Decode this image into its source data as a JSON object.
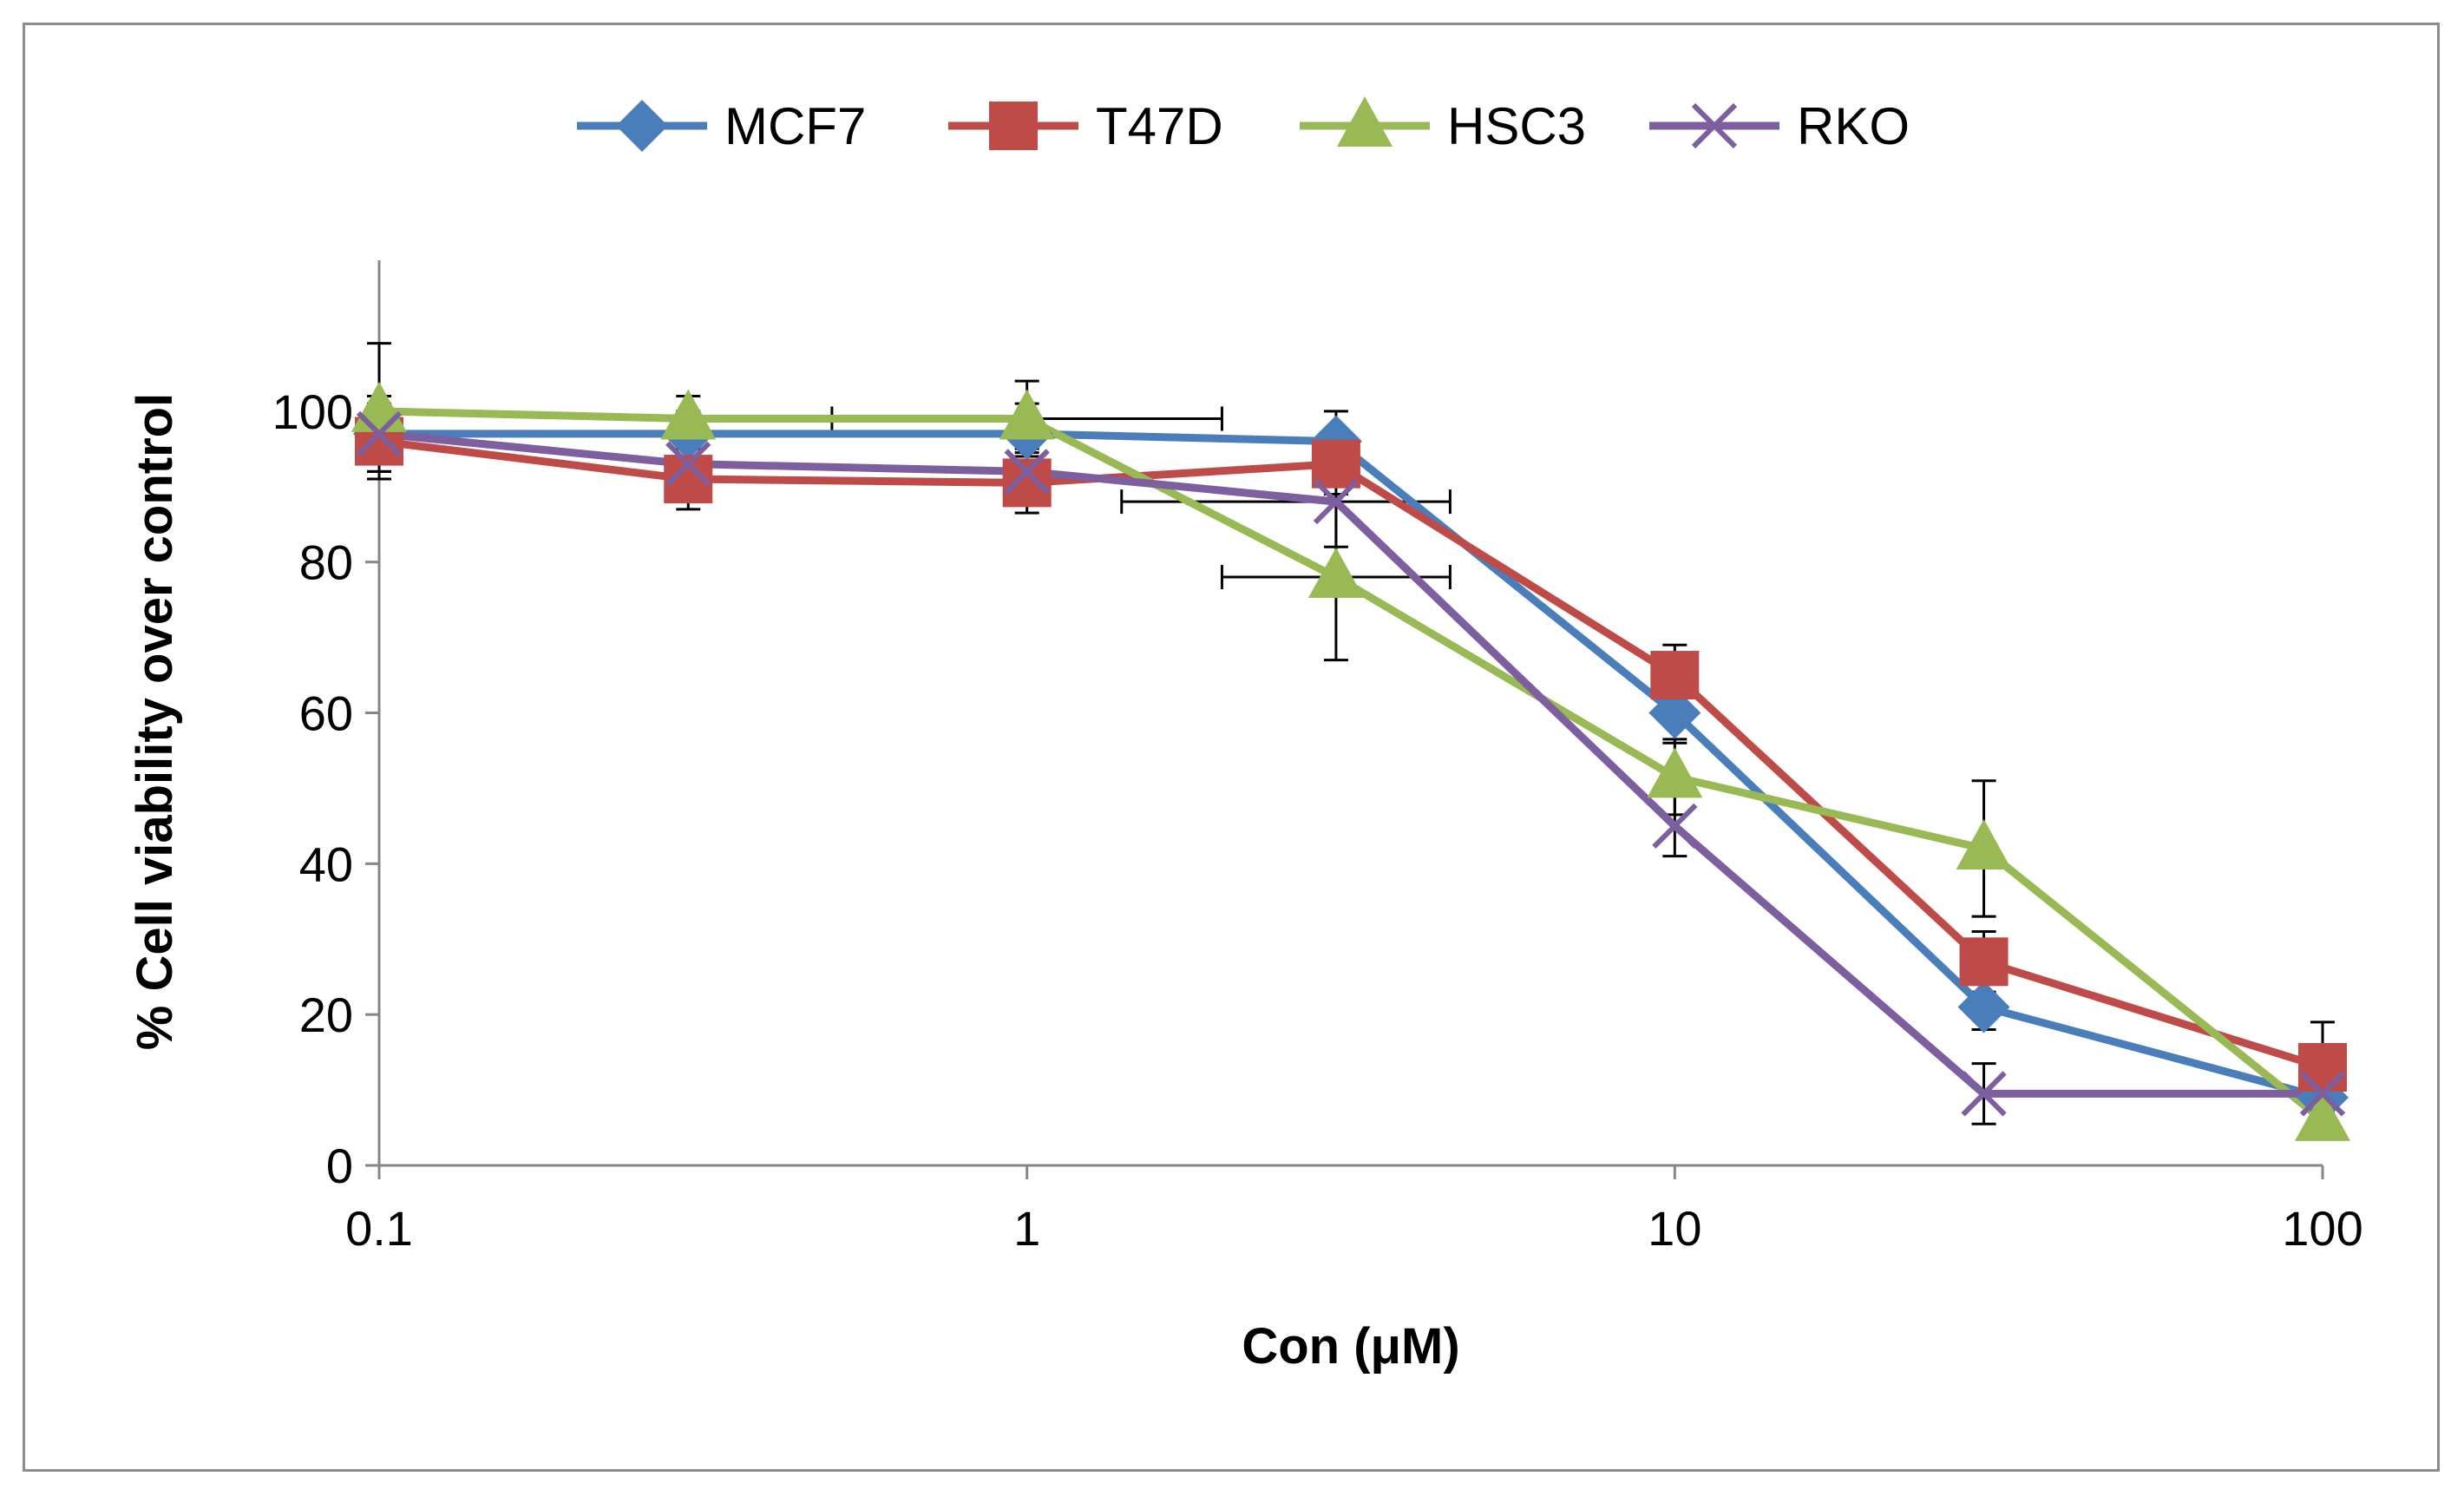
{
  "chart_data": {
    "type": "line",
    "xscale": "log",
    "xlim": [
      0.1,
      100
    ],
    "ylim": [
      0,
      120
    ],
    "grid": false,
    "legend_position": "top",
    "xlabel": "Con (μM)",
    "ylabel": "% Cell viability over control",
    "xticks": [
      {
        "value": 0.1,
        "label": "0.1"
      },
      {
        "value": 1,
        "label": "1"
      },
      {
        "value": 10,
        "label": "10"
      },
      {
        "value": 100,
        "label": "100"
      }
    ],
    "yticks": [
      {
        "value": 0,
        "label": "0"
      },
      {
        "value": 20,
        "label": "20"
      },
      {
        "value": 40,
        "label": "40"
      },
      {
        "value": 60,
        "label": "60"
      },
      {
        "value": 80,
        "label": "80"
      },
      {
        "value": 100,
        "label": "100"
      }
    ],
    "series": [
      {
        "name": "MCF7",
        "color": "#4a7ebb",
        "marker": "diamond",
        "points": [
          {
            "x": 0.1,
            "y": 97,
            "yerr": 5
          },
          {
            "x": 0.3,
            "y": 97,
            "yerr": 3
          },
          {
            "x": 1,
            "y": 97,
            "yerr": 4
          },
          {
            "x": 3,
            "y": 96,
            "yerr": 4
          },
          {
            "x": 10,
            "y": 60,
            "yerr": 4
          },
          {
            "x": 30,
            "y": 21,
            "yerr": 3
          },
          {
            "x": 100,
            "y": 9,
            "yerr": 2
          }
        ]
      },
      {
        "name": "T47D",
        "color": "#be4b48",
        "marker": "square",
        "points": [
          {
            "x": 0.1,
            "y": 96,
            "yerr": 4
          },
          {
            "x": 0.3,
            "y": 91,
            "yerr": 4
          },
          {
            "x": 1,
            "y": 90.5,
            "yerr": 4
          },
          {
            "x": 3,
            "y": 93,
            "yerr": 3
          },
          {
            "x": 10,
            "y": 65,
            "yerr": 4
          },
          {
            "x": 30,
            "y": 27,
            "yerr": 4
          },
          {
            "x": 100,
            "y": 13,
            "yerr": 6
          }
        ]
      },
      {
        "name": "HSC3",
        "color": "#98b954",
        "marker": "triangle",
        "points": [
          {
            "x": 0.1,
            "y": 100,
            "yerr": 9
          },
          {
            "x": 0.3,
            "y": 99,
            "yerr": 3
          },
          {
            "x": 1,
            "y": 99,
            "yerr": 5,
            "xerr": [
              0.5,
              2
            ]
          },
          {
            "x": 3,
            "y": 78,
            "yerr": 11,
            "xerr": [
              2,
              4.5
            ]
          },
          {
            "x": 10,
            "y": 51.5,
            "yerr": 5
          },
          {
            "x": 30,
            "y": 42,
            "yerr": 9
          },
          {
            "x": 100,
            "y": 6,
            "yerr": 2
          }
        ]
      },
      {
        "name": "RKO",
        "color": "#7d5fa0",
        "marker": "x",
        "points": [
          {
            "x": 0.1,
            "y": 97,
            "yerr": 4
          },
          {
            "x": 0.3,
            "y": 93,
            "yerr": 3
          },
          {
            "x": 1,
            "y": 92,
            "yerr": 3
          },
          {
            "x": 3,
            "y": 88,
            "yerr": 6,
            "xerr": [
              1.4,
              4.5
            ]
          },
          {
            "x": 10,
            "y": 45,
            "yerr": 4
          },
          {
            "x": 30,
            "y": 9.5,
            "yerr": 4
          },
          {
            "x": 100,
            "y": 9.5,
            "yerr": 2
          }
        ]
      }
    ]
  }
}
